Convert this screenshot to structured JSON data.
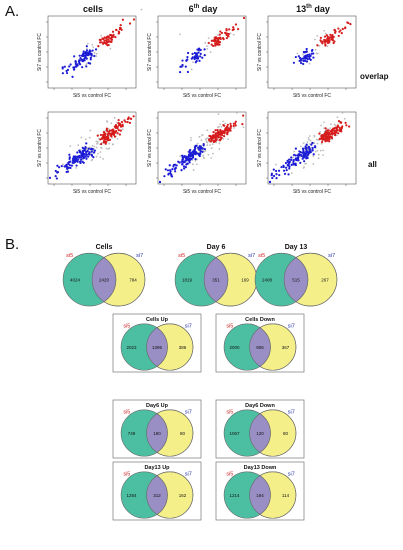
{
  "panel_a": {
    "letter": "A.",
    "col_titles": [
      {
        "main": "cells",
        "sup": ""
      },
      {
        "main": "6",
        "sup": "th",
        "rest": " day"
      },
      {
        "main": "13",
        "sup": "th",
        "rest": " day"
      }
    ],
    "row_labels": [
      "overlap",
      "all"
    ],
    "xlabel": "Si5 vs control FC",
    "ylabel": "Si7 vs control FC",
    "colors": {
      "blue": "#1c1cd6",
      "red": "#d61c1c",
      "grey": "#bdbdbd"
    }
  },
  "panel_b": {
    "letter": "B.",
    "set_labels": {
      "left": "si5",
      "right": "si7"
    },
    "colors": {
      "left": "#4cbfa3",
      "right": "#f5ef8a",
      "overlap": "#9a8fc4",
      "left_label": "#cc2222",
      "right_label": "#2233aa"
    },
    "top": [
      {
        "title": "Cells",
        "left": "4024",
        "mid": "2420",
        "right": "784"
      },
      {
        "title": "Day 6",
        "left": "1819",
        "mid": "351",
        "right": "169"
      },
      {
        "title": "Day 13",
        "left": "2408",
        "mid": "515",
        "right": "267"
      }
    ],
    "grid": [
      {
        "title": "Cells Up",
        "left": "2023",
        "mid": "1395",
        "right": "386"
      },
      {
        "title": "Cells Down",
        "left": "2000",
        "mid": "906",
        "right": "367"
      },
      {
        "title": "Day6 Up",
        "left": "749",
        "mid": "180",
        "right": "80"
      },
      {
        "title": "Day6 Down",
        "left": "1067",
        "mid": "120",
        "right": "80"
      },
      {
        "title": "Day13 Up",
        "left": "1254",
        "mid": "312",
        "right": "162"
      },
      {
        "title": "Day13 Down",
        "left": "1214",
        "mid": "194",
        "right": "114"
      }
    ]
  }
}
